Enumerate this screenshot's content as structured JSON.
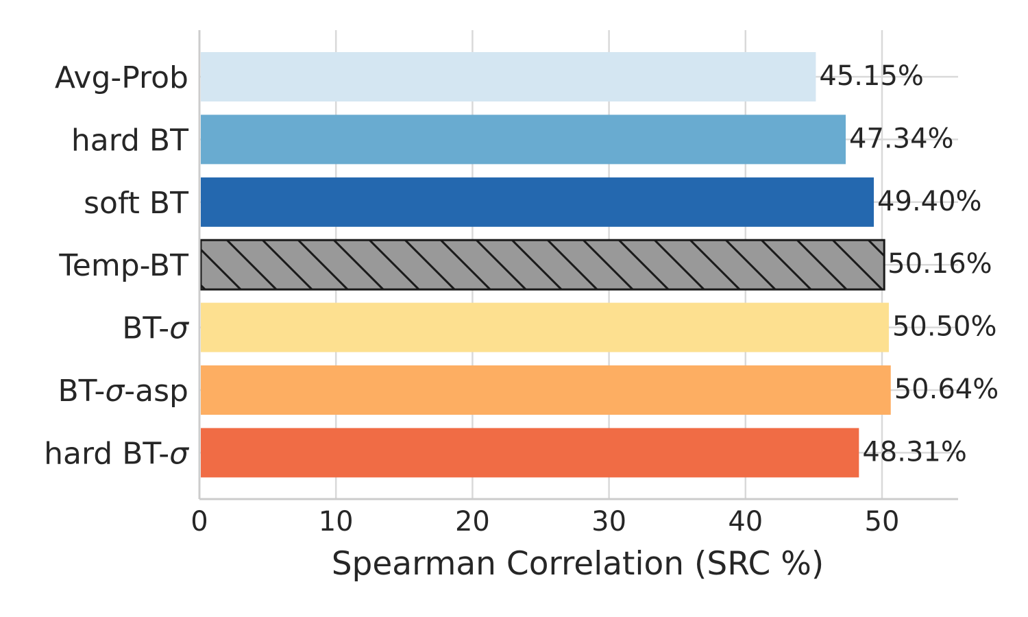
{
  "chart_data": {
    "type": "bar",
    "orientation": "horizontal",
    "title": "",
    "xlabel": "Spearman Correlation (SRC %)",
    "ylabel": "",
    "xlim": [
      0,
      55.5
    ],
    "xticks": [
      0,
      10,
      20,
      30,
      40,
      50
    ],
    "grid": "vertical",
    "categories": [
      "Avg-Prob",
      "hard BT",
      "soft BT",
      "Temp-BT",
      "BT-σ",
      "BT-σ-asp",
      "hard BT-σ"
    ],
    "values": [
      45.15,
      47.34,
      49.4,
      50.16,
      50.5,
      50.64,
      48.31
    ],
    "value_labels": [
      "45.15%",
      "47.34%",
      "49.40%",
      "50.16%",
      "50.50%",
      "50.64%",
      "48.31%"
    ],
    "colors": [
      "#d4e6f2",
      "#69abd0",
      "#2468af",
      "#999999",
      "#fde090",
      "#fdae62",
      "#f06c45"
    ],
    "hatched": [
      false,
      false,
      false,
      true,
      false,
      false,
      false
    ]
  }
}
